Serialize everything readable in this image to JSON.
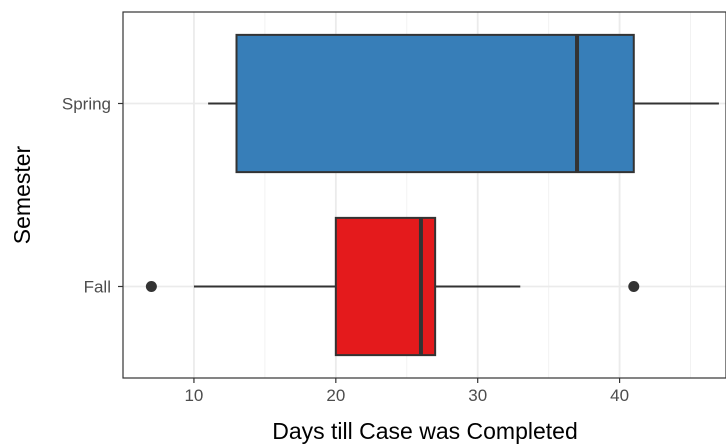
{
  "chart_data": {
    "type": "boxplot",
    "orientation": "horizontal",
    "xlabel": "Days till Case was Completed",
    "ylabel": "Semester",
    "xlim": [
      5,
      47.5
    ],
    "x_ticks": [
      10,
      20,
      30,
      40
    ],
    "x_tick_labels": [
      "10",
      "20",
      "30",
      "40"
    ],
    "grid": true,
    "legend": "none",
    "categories": [
      "Fall",
      "Spring"
    ],
    "series": [
      {
        "category": "Spring",
        "color": "#377eb8",
        "whisker_low": 11,
        "q1": 13,
        "median": 37,
        "q3": 41,
        "whisker_high": 47,
        "outliers": []
      },
      {
        "category": "Fall",
        "color": "#e41a1c",
        "whisker_low": 10,
        "q1": 20,
        "median": 26,
        "q3": 27,
        "whisker_high": 33,
        "outliers": [
          7,
          41
        ]
      }
    ]
  }
}
